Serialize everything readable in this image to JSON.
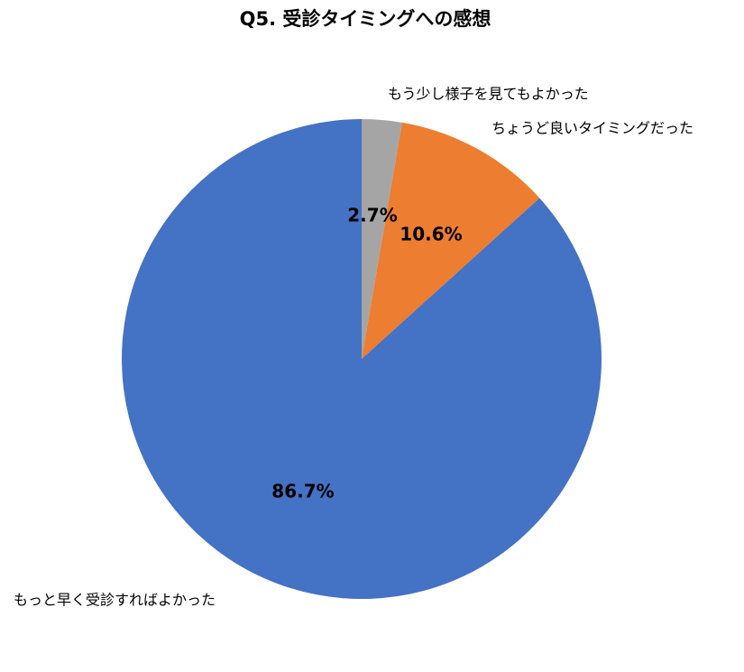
{
  "chart_data": {
    "type": "pie",
    "title": "Q5. 受診タイミングへの感想",
    "categories": [
      "もう少し様子を見てもよかった",
      "ちょうど良いタイミングだった",
      "もっと早く受診すればよかった"
    ],
    "values": [
      2.7,
      10.6,
      86.7
    ],
    "value_labels": [
      "2.7%",
      "10.6%",
      "86.7%"
    ],
    "colors": [
      "#a5a5a5",
      "#ed7d31",
      "#4472c4"
    ]
  }
}
